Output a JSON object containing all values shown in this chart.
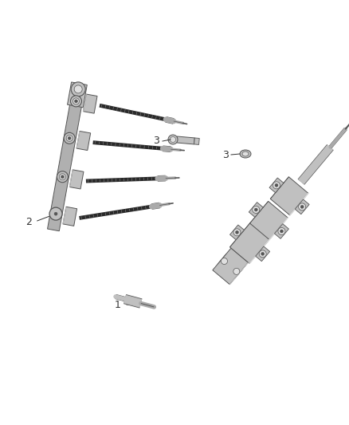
{
  "background_color": "#ffffff",
  "figsize": [
    4.38,
    5.33
  ],
  "dpi": 100,
  "line_color": "#333333",
  "text_color": "#333333",
  "font_size": 9,
  "lw_thin": 0.5,
  "lw_med": 0.8,
  "lw_thick": 1.2,
  "gray_light": "#e0e0e0",
  "gray_mid": "#c0c0c0",
  "gray_dark": "#888888",
  "gray_darker": "#555555",
  "gray_body": "#b0b0b0",
  "wire_dark": "#2a2a2a",
  "wire_stripe": "#888888",
  "plug_silver": "#aaaaaa",
  "plug_dark": "#444444"
}
